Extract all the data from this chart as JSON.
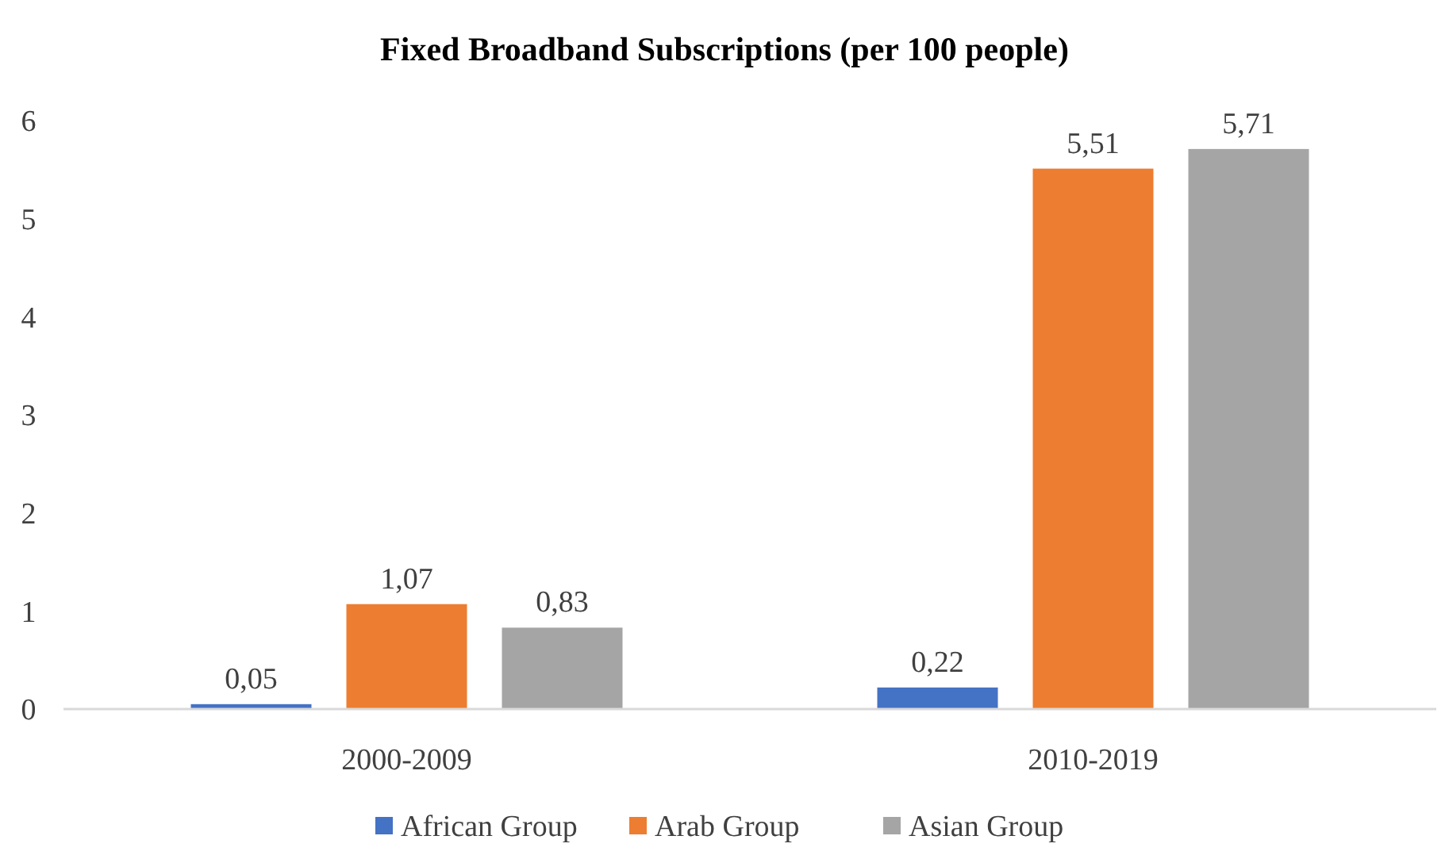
{
  "chart_data": {
    "type": "bar",
    "title": "Fixed Broadband Subscriptions (per 100 people)",
    "categories": [
      "2000-2009",
      "2010-2019"
    ],
    "series": [
      {
        "name": "African Group",
        "color": "#4472c4",
        "values": [
          0.05,
          0.22
        ],
        "value_labels": [
          "0,05",
          "0,22"
        ]
      },
      {
        "name": "Arab Group",
        "color": "#ed7d31",
        "values": [
          1.07,
          5.51
        ],
        "value_labels": [
          "1,07",
          "5,51"
        ]
      },
      {
        "name": "Asian Group",
        "color": "#a5a5a5",
        "values": [
          0.83,
          5.71
        ],
        "value_labels": [
          "0,83",
          "5,71"
        ]
      }
    ],
    "ylim": [
      0,
      6
    ],
    "yticks": [
      0,
      1,
      2,
      3,
      4,
      5,
      6
    ],
    "grid": false,
    "legend": "bottom"
  }
}
